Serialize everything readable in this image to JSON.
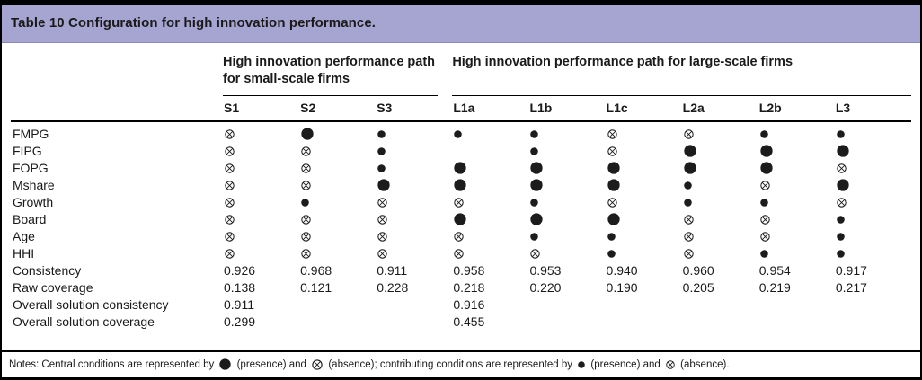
{
  "title": "Table 10 Configuration for high innovation performance.",
  "colors": {
    "header_bg": "#a6a5d2",
    "text": "#1a1a1a",
    "symbol": "#1c1c1c"
  },
  "symbols_meaning": {
    "cp": "central condition present (large filled circle)",
    "ca": "central condition absent (large crossed circle)",
    "p": "contributing condition present (small filled circle)",
    "a": "contributing condition absent (small crossed circle)",
    "": "blank / condition irrelevant"
  },
  "table": {
    "group_headers": [
      {
        "label": "High innovation performance path for small-scale firms",
        "span": 3
      },
      {
        "label": "High innovation performance path for large-scale firms",
        "span": 6
      }
    ],
    "columns": [
      "S1",
      "S2",
      "S3",
      "L1a",
      "L1b",
      "L1c",
      "L2a",
      "L2b",
      "L3"
    ],
    "condition_rows": [
      {
        "label": "FMPG",
        "cells": [
          "a",
          "cp",
          "p",
          "p",
          "p",
          "a",
          "a",
          "p",
          "p"
        ]
      },
      {
        "label": "FIPG",
        "cells": [
          "a",
          "a",
          "p",
          "",
          "p",
          "a",
          "cp",
          "cp",
          "cp"
        ]
      },
      {
        "label": "FOPG",
        "cells": [
          "a",
          "a",
          "p",
          "cp",
          "cp",
          "cp",
          "cp",
          "cp",
          "a"
        ]
      },
      {
        "label": "Mshare",
        "cells": [
          "a",
          "a",
          "cp",
          "cp",
          "cp",
          "cp",
          "p",
          "a",
          "cp"
        ]
      },
      {
        "label": "Growth",
        "cells": [
          "a",
          "p",
          "a",
          "a",
          "p",
          "a",
          "p",
          "p",
          "a"
        ]
      },
      {
        "label": "Board",
        "cells": [
          "a",
          "a",
          "a",
          "cp",
          "cp",
          "cp",
          "a",
          "a",
          "p"
        ]
      },
      {
        "label": "Age",
        "cells": [
          "a",
          "a",
          "a",
          "a",
          "p",
          "p",
          "a",
          "a",
          "p"
        ]
      },
      {
        "label": "HHI",
        "cells": [
          "a",
          "a",
          "a",
          "a",
          "a",
          "p",
          "a",
          "p",
          "p"
        ]
      }
    ],
    "metric_rows": [
      {
        "label": "Consistency",
        "values": [
          "0.926",
          "0.968",
          "0.911",
          "0.958",
          "0.953",
          "0.940",
          "0.960",
          "0.954",
          "0.917"
        ]
      },
      {
        "label": "Raw coverage",
        "values": [
          "0.138",
          "0.121",
          "0.228",
          "0.218",
          "0.220",
          "0.190",
          "0.205",
          "0.219",
          "0.217"
        ]
      },
      {
        "label": "Overall solution consistency",
        "values": [
          "0.911",
          "",
          "",
          "0.916",
          "",
          "",
          "",
          "",
          ""
        ]
      },
      {
        "label": "Overall solution coverage",
        "values": [
          "0.299",
          "",
          "",
          "0.455",
          "",
          "",
          "",
          "",
          ""
        ]
      }
    ]
  },
  "notes": {
    "segments": [
      {
        "text": "Notes: Central conditions are represented by "
      },
      {
        "symbol": "cp"
      },
      {
        "text": " (presence) and "
      },
      {
        "symbol": "ca"
      },
      {
        "text": " (absence); contributing conditions are represented by "
      },
      {
        "symbol": "p"
      },
      {
        "text": " (presence) and "
      },
      {
        "symbol": "a"
      },
      {
        "text": " (absence)."
      }
    ]
  }
}
